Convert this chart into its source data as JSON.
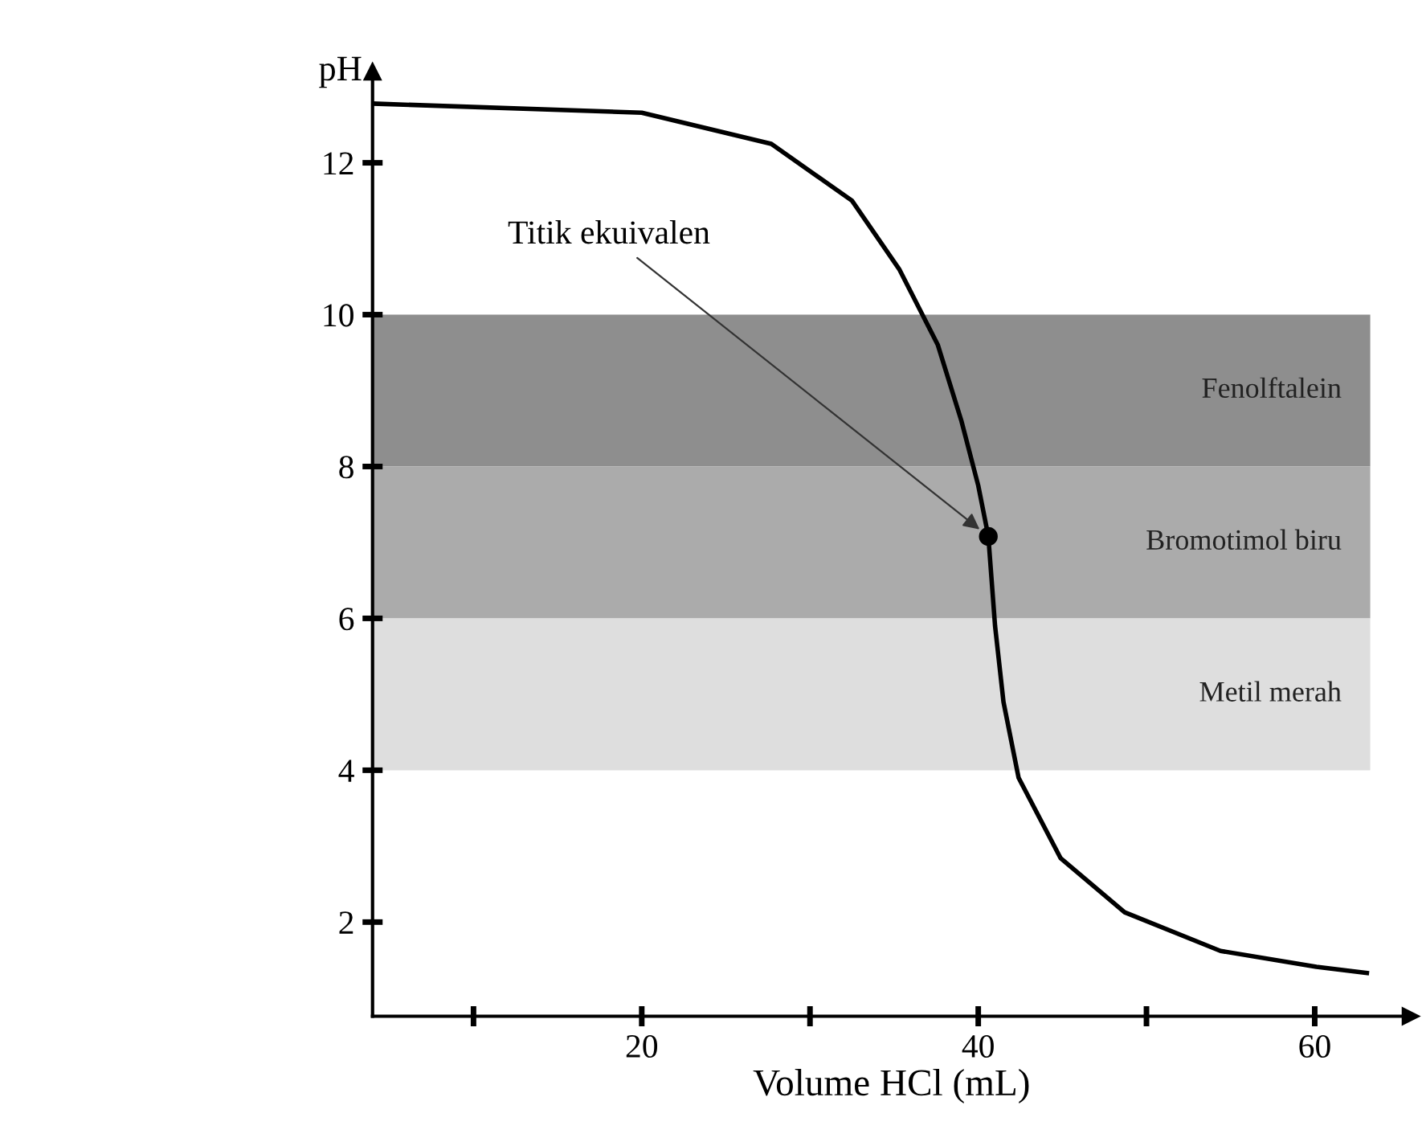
{
  "chart_data": {
    "type": "line",
    "xlabel": "Volume HCl (mL)",
    "ylabel": "pH",
    "x": [
      4,
      20,
      27.7,
      32.5,
      35.3,
      37.6,
      39.0,
      40.0,
      40.6,
      41.0,
      41.5,
      42.4,
      44.9,
      48.7,
      54.4,
      60.1,
      63.1
    ],
    "series": [
      {
        "color": "#000000",
        "marker": "none",
        "values": [
          12.78,
          12.66,
          12.25,
          11.5,
          10.6,
          9.6,
          8.6,
          7.75,
          7.08,
          5.9,
          4.9,
          3.9,
          2.84,
          2.13,
          1.62,
          1.41,
          1.33
        ]
      },
      {
        "type": "scatter",
        "marker": "circle",
        "color": "#000000",
        "x": [
          40.6
        ],
        "values": [
          7.08
        ]
      }
    ],
    "xlim": [
      4,
      65.7
    ],
    "ylim": [
      0.76,
      13.2
    ],
    "xticks": [
      {
        "value": 10,
        "label": null
      },
      20,
      {
        "value": 30,
        "label": null
      },
      40,
      {
        "value": 50,
        "label": null
      },
      60
    ],
    "yticks": [
      2,
      4,
      6,
      8,
      10,
      12
    ],
    "bands": [
      {
        "axis": "y",
        "from": 8,
        "to": 10,
        "label": "Fenolftalein",
        "color": "#8e8e8e"
      },
      {
        "axis": "y",
        "from": 6,
        "to": 8,
        "label": "Bromotimol biru",
        "color": "#ababab"
      },
      {
        "axis": "y",
        "from": 4,
        "to": 6,
        "label": "Metil merah",
        "color": "#dedede"
      }
    ],
    "annotations": [
      {
        "text": "Titik ekuivalen",
        "x": 40.6,
        "y": 7.08
      }
    ],
    "grid": false,
    "legend": false,
    "line_style": "solid"
  }
}
